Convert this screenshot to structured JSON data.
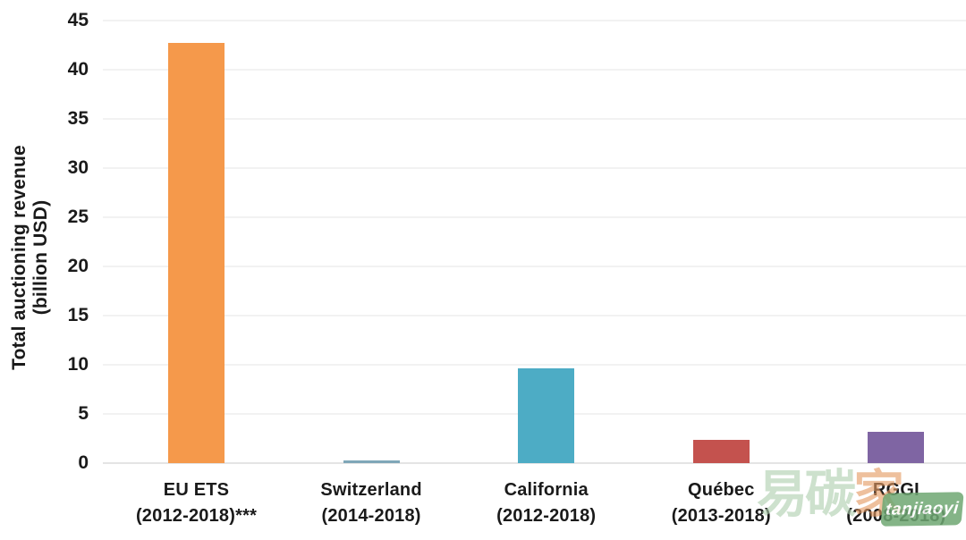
{
  "chart_data": {
    "type": "bar",
    "title": "",
    "ylabel": "Total auctioning revenue (billion USD)",
    "ylabel_lines": [
      "Total auctioning revenue",
      "(billion USD)"
    ],
    "categories": [
      "EU ETS",
      "Switzerland",
      "California",
      "Québec",
      "RGGI"
    ],
    "category_sublabels": [
      "(2012-2018)***",
      "(2014-2018)",
      "(2012-2018)",
      "(2013-2018)",
      "(2008-2018)"
    ],
    "values": [
      42.7,
      0.3,
      9.6,
      2.4,
      3.2
    ],
    "bar_colors": [
      "#F5994B",
      "#7FA7B8",
      "#4DACC5",
      "#C4524E",
      "#7F65A3"
    ],
    "ylim": [
      0,
      45
    ],
    "yticks": [
      0,
      5,
      10,
      15,
      20,
      25,
      30,
      35,
      40,
      45
    ],
    "grid": true,
    "legend": "none",
    "gridline_color": "#F2F2F2",
    "axis_line_color": "#E4E4E4",
    "text_color": "#1A1A1A"
  },
  "watermark": {
    "characters": [
      {
        "text": "易",
        "color": "#AFCFAF"
      },
      {
        "text": "碳",
        "color": "#AFCFAF"
      },
      {
        "text": "家",
        "color": "#E59A62"
      }
    ],
    "badge_label": "tanjiaoyi",
    "badge_color": "#6FA873",
    "badge_text_color": "#FFFFFF"
  }
}
